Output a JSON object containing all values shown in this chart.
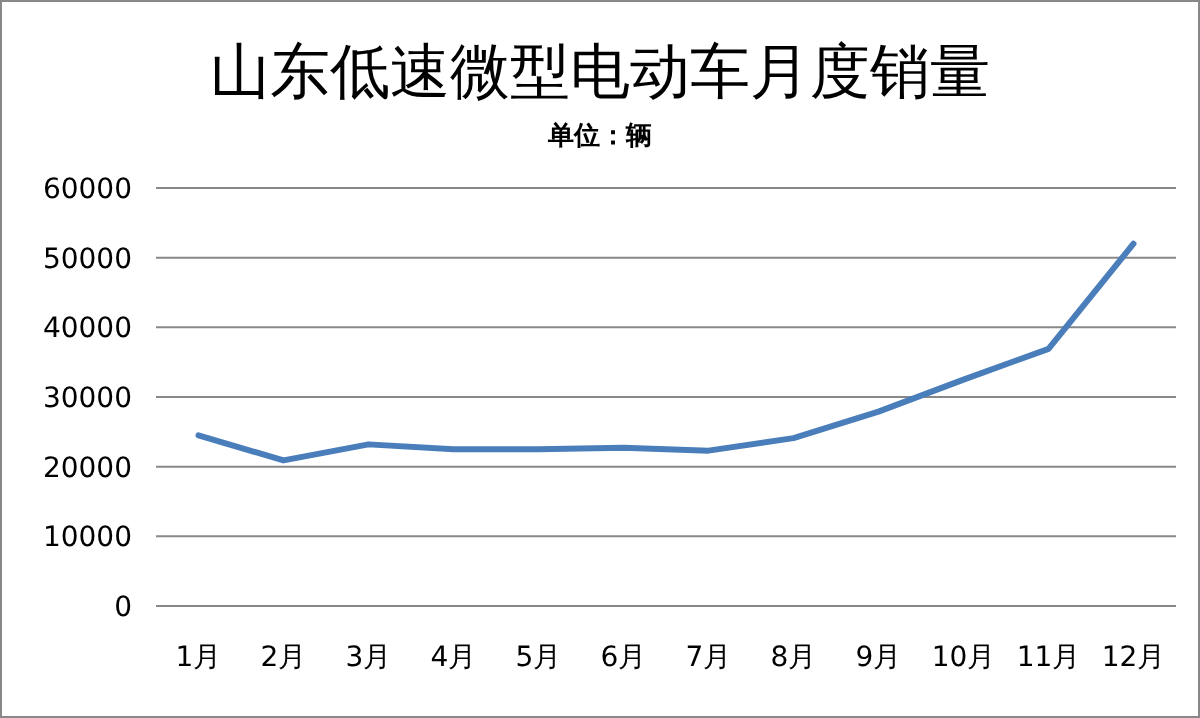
{
  "chart_data": {
    "type": "line",
    "title": "山东低速微型电动车月度销量",
    "subtitle": "单位：辆",
    "categories": [
      "1月",
      "2月",
      "3月",
      "4月",
      "5月",
      "6月",
      "7月",
      "8月",
      "9月",
      "10月",
      "11月",
      "12月"
    ],
    "series": [
      {
        "color": "#4a7ebb",
        "values": [
          24500,
          20900,
          23200,
          22500,
          22500,
          22700,
          22300,
          24100,
          27900,
          32500,
          36900,
          52000
        ]
      }
    ],
    "ylim": [
      0,
      60000
    ],
    "yticks": [
      0,
      10000,
      20000,
      30000,
      40000,
      50000,
      60000
    ],
    "grid": "y",
    "marker": "none",
    "line_style": "solid"
  }
}
